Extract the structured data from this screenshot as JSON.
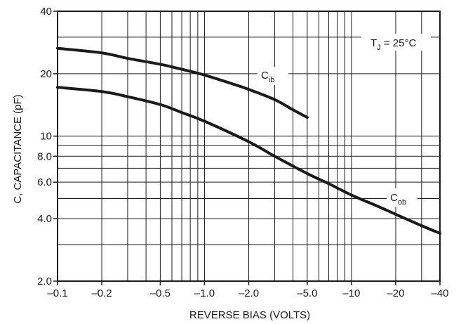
{
  "chart_data": {
    "type": "line",
    "title": "",
    "xlabel": "REVERSE BIAS (VOLTS)",
    "ylabel": "C, CAPACITANCE (pF)",
    "x_scale": "log",
    "y_scale": "log",
    "xlim": [
      -0.1,
      -40
    ],
    "ylim": [
      2.0,
      40
    ],
    "grid": true,
    "x_ticks": [
      {
        "value": -0.1,
        "label": "–0.1"
      },
      {
        "value": -0.2,
        "label": "–0.2"
      },
      {
        "value": -0.5,
        "label": "–0.5"
      },
      {
        "value": -1.0,
        "label": "–1.0"
      },
      {
        "value": -2.0,
        "label": "–2.0"
      },
      {
        "value": -5.0,
        "label": "–5.0"
      },
      {
        "value": -10,
        "label": "–10"
      },
      {
        "value": -20,
        "label": "–20"
      },
      {
        "value": -40,
        "label": "–40"
      }
    ],
    "y_ticks": [
      {
        "value": 2.0,
        "label": "2.0"
      },
      {
        "value": 4.0,
        "label": "4.0"
      },
      {
        "value": 6.0,
        "label": "6.0"
      },
      {
        "value": 8.0,
        "label": "8.0"
      },
      {
        "value": 10,
        "label": "10"
      },
      {
        "value": 20,
        "label": "20"
      },
      {
        "value": 40,
        "label": "40"
      }
    ],
    "x_minor_grid": [
      -0.3,
      -0.4,
      -0.6,
      -0.7,
      -0.8,
      -0.9,
      -3,
      -4,
      -6,
      -7,
      -8,
      -9,
      -30
    ],
    "y_minor_grid": [
      3,
      5,
      7,
      9,
      30
    ],
    "annotation": {
      "main": "T",
      "sub": "J",
      "suffix": " = 25°C"
    },
    "series": [
      {
        "name": "C",
        "name_sub": "ib",
        "color": "#1a1a1a",
        "points": [
          {
            "x": -0.1,
            "y": 26.5
          },
          {
            "x": -0.2,
            "y": 25.2
          },
          {
            "x": -0.3,
            "y": 23.7
          },
          {
            "x": -0.5,
            "y": 22.2
          },
          {
            "x": -0.7,
            "y": 21.0
          },
          {
            "x": -1.0,
            "y": 19.7
          },
          {
            "x": -1.5,
            "y": 18.0
          },
          {
            "x": -2.0,
            "y": 16.8
          },
          {
            "x": -3.0,
            "y": 15.0
          },
          {
            "x": -4.0,
            "y": 13.4
          },
          {
            "x": -5.0,
            "y": 12.3
          }
        ]
      },
      {
        "name": "C",
        "name_sub": "ob",
        "color": "#1a1a1a",
        "points": [
          {
            "x": -0.1,
            "y": 17.2
          },
          {
            "x": -0.2,
            "y": 16.4
          },
          {
            "x": -0.3,
            "y": 15.5
          },
          {
            "x": -0.5,
            "y": 14.2
          },
          {
            "x": -0.7,
            "y": 13.0
          },
          {
            "x": -1.0,
            "y": 11.8
          },
          {
            "x": -2.0,
            "y": 9.4
          },
          {
            "x": -3.0,
            "y": 8.0
          },
          {
            "x": -5.0,
            "y": 6.6
          },
          {
            "x": -7.0,
            "y": 5.9
          },
          {
            "x": -10,
            "y": 5.2
          },
          {
            "x": -15,
            "y": 4.6
          },
          {
            "x": -20,
            "y": 4.2
          },
          {
            "x": -30,
            "y": 3.7
          },
          {
            "x": -40,
            "y": 3.4
          }
        ]
      }
    ]
  }
}
